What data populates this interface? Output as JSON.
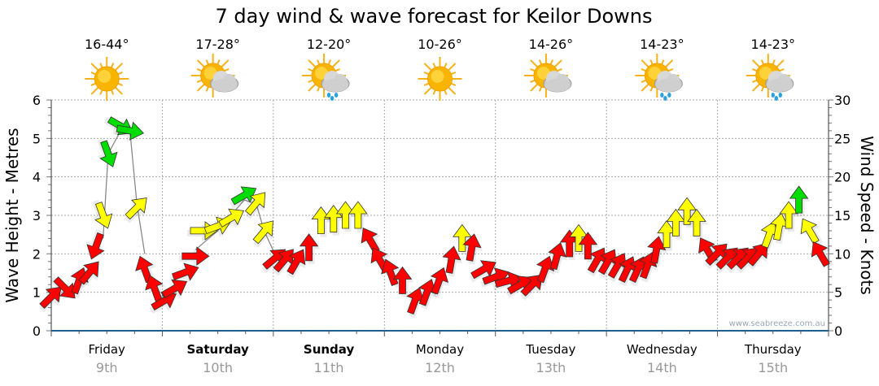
{
  "chart_data": {
    "type": "scatter",
    "title": "7 day wind & wave forecast for Keilor Downs",
    "ylabel_left": "Wave Height - Metres",
    "ylabel_right": "Wind Speed - Knots",
    "ylim_left": [
      0,
      6
    ],
    "ylim_right": [
      0,
      30
    ],
    "xlim_hours": [
      0,
      168
    ],
    "grid": true,
    "watermark": "www.seabreeze.com.au",
    "left_ticks": [
      "0",
      "1",
      "2",
      "3",
      "4",
      "5",
      "6"
    ],
    "right_ticks": [
      "0",
      "5",
      "10",
      "15",
      "20",
      "25",
      "30"
    ],
    "days": [
      {
        "name": "Friday",
        "date": "9th",
        "temp": "16-44°",
        "icon": "sun",
        "bold": false
      },
      {
        "name": "Saturday",
        "date": "10th",
        "temp": "17-28°",
        "icon": "sun-cloud",
        "bold": true
      },
      {
        "name": "Sunday",
        "date": "11th",
        "temp": "12-20°",
        "icon": "sun-cloud-rain",
        "bold": true
      },
      {
        "name": "Monday",
        "date": "12th",
        "temp": "10-26°",
        "icon": "sun",
        "bold": false
      },
      {
        "name": "Tuesday",
        "date": "13th",
        "temp": "14-26°",
        "icon": "sun-cloud",
        "bold": false
      },
      {
        "name": "Wednesday",
        "date": "14th",
        "temp": "14-23°",
        "icon": "sun-cloud-rain",
        "bold": false
      },
      {
        "name": "Thursday",
        "date": "15th",
        "temp": "14-23°",
        "icon": "sun-cloud-rain",
        "bold": false
      }
    ],
    "wind_color_scale": {
      "low": "#ff0000",
      "mid": "#ffff00",
      "high": "#00dd00",
      "mid_from_knots": 12,
      "high_from_knots": 17
    },
    "wind": {
      "hours": [
        0,
        3,
        6,
        8.3,
        9.7,
        11.2,
        12.3,
        15,
        17,
        18.5,
        20.2,
        22.3,
        24.4,
        26.7,
        29,
        31.1,
        32.9,
        36,
        39,
        41.7,
        44.3,
        46,
        48.3,
        50.4,
        53,
        55.7,
        58.3,
        61,
        63.6,
        66.3,
        68.9,
        71,
        73.3,
        75.9,
        78.6,
        81.2,
        83.8,
        86.5,
        88.8,
        90.9,
        93.5,
        96.1,
        98.8,
        101.4,
        104,
        106.7,
        109.3,
        112,
        114,
        116,
        118,
        120.3,
        122.4,
        124.5,
        126.8,
        128.9,
        130.8,
        133,
        135,
        137.4,
        139.5,
        141.8,
        143.9,
        146.2,
        148.5,
        150.6,
        152.9,
        155.2,
        157.3,
        159.4,
        161.6,
        163.9,
        166.2
      ],
      "knots": [
        4.4,
        5.5,
        6.5,
        7.6,
        11,
        15,
        23,
        26.6,
        26,
        16,
        8,
        5.5,
        3.9,
        5.5,
        7.6,
        9.7,
        13,
        13.6,
        14.7,
        17.6,
        16.6,
        12.9,
        9.4,
        9.2,
        9,
        10.8,
        14.3,
        14.5,
        15,
        15,
        11.8,
        9.2,
        7.6,
        6.5,
        3.9,
        5,
        6.5,
        9.2,
        12,
        10.8,
        8,
        7,
        6.5,
        6,
        6,
        8,
        9.7,
        11.3,
        12,
        11,
        9.2,
        9,
        8.5,
        8,
        8,
        8.5,
        10.5,
        12.5,
        14,
        15.5,
        14,
        10.5,
        10,
        9.5,
        9.5,
        9.5,
        10,
        12.5,
        13.5,
        15,
        17,
        13,
        10
      ],
      "direction_deg": [
        45,
        135,
        20,
        40,
        200,
        160,
        160,
        120,
        100,
        45,
        340,
        340,
        60,
        60,
        70,
        90,
        90,
        70,
        60,
        60,
        40,
        40,
        50,
        40,
        30,
        0,
        0,
        0,
        0,
        0,
        330,
        330,
        340,
        0,
        20,
        20,
        20,
        10,
        0,
        10,
        60,
        70,
        75,
        60,
        45,
        20,
        15,
        0,
        0,
        0,
        30,
        30,
        30,
        25,
        25,
        20,
        10,
        0,
        0,
        0,
        0,
        330,
        45,
        45,
        45,
        45,
        40,
        20,
        10,
        0,
        0,
        330,
        330
      ]
    },
    "wave_height": {
      "segments": [
        {
          "hours": [
            11.2,
            12.3,
            15,
            17,
            18.5,
            20.2
          ],
          "metres": [
            2.4,
            4.6,
            5.2,
            5.2,
            3.3,
            2.0
          ]
        },
        {
          "hours": [
            31.1,
            36,
            41.7,
            44.3,
            46,
            48.3
          ],
          "metres": [
            2.1,
            2.6,
            3.4,
            3.3,
            2.6,
            2.0
          ]
        }
      ]
    }
  }
}
